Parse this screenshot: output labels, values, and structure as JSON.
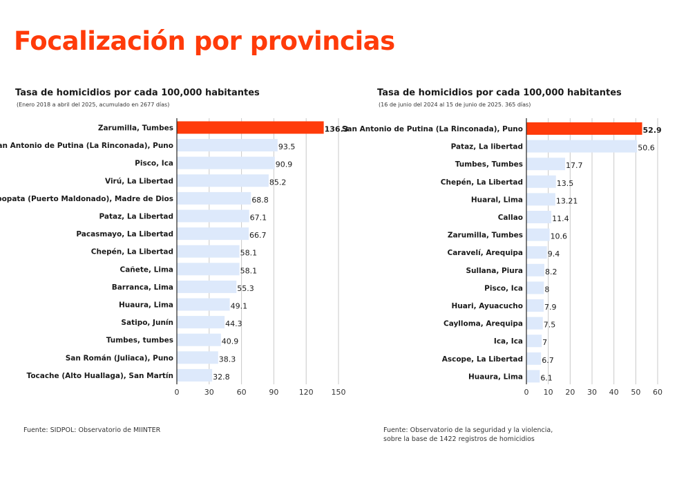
{
  "title": "Focalización por provincias",
  "colors": {
    "accent": "#ff3b0a",
    "bar": "#dde9fb",
    "grid": "#c8c8c8"
  },
  "source_left": "Fuente: SIDPOL: Observatorio de MIINTER",
  "source_right_line1": "Fuente: Observatorio de la seguridad y la violencia,",
  "source_right_line2": "sobre la base de 1422 registros de homicidios",
  "chart_data": [
    {
      "type": "bar",
      "orientation": "horizontal",
      "title": "Tasa de homicidios por cada 100,000 habitantes",
      "subtitle": "(Enero 2018 a abril del 2025, acumulado en 2677 días)",
      "categories": [
        "Zarumilla, Tumbes",
        "San Antonio de Putina  (La Rinconada), Puno",
        "Pisco, Ica",
        "Virú, La Libertad",
        "Tambopata (Puerto Maldonado), Madre de Dios",
        "Pataz, La Libertad",
        "Pacasmayo, La Libertad",
        "Chepén, La Libertad",
        "Cañete, Lima",
        "Barranca, Lima",
        "Huaura, Lima",
        "Satipo, Junín",
        "Tumbes, tumbes",
        "San Román (Juliaca), Puno",
        "Tocache (Alto Huallaga), San Martín"
      ],
      "values": [
        136.3,
        93.5,
        90.9,
        85.2,
        68.8,
        67.1,
        66.7,
        58.1,
        58.1,
        55.3,
        49.1,
        44.3,
        40.9,
        38.3,
        32.8
      ],
      "value_labels": [
        "136.3",
        "93.5",
        "90.9",
        "85.2",
        "68.8",
        "67.1",
        "66.7",
        "58.1",
        "58.1",
        "55.3",
        "49.1",
        "44.3",
        "40.9",
        "38.3",
        "32.8"
      ],
      "highlight_index": 0,
      "xlim": [
        0,
        150
      ],
      "xticks": [
        "0",
        "30",
        "60",
        "90",
        "120",
        "150"
      ],
      "grid": true
    },
    {
      "type": "bar",
      "orientation": "horizontal",
      "title": "Tasa de homicidios por cada 100,000 habitantes",
      "subtitle": "(16 de junio del 2024 al  15 de junio de 2025. 365 días)",
      "categories": [
        "San Antonio de Putina  (La Rinconada), Puno",
        "Pataz, La libertad",
        "Tumbes, Tumbes",
        "Chepén, La Libertad",
        "Huaral, Lima",
        "Callao",
        "Zarumilla, Tumbes",
        "Caravelí, Arequipa",
        "Sullana, Piura",
        "Pisco, Ica",
        "Huari, Ayuacucho",
        "Caylloma, Arequipa",
        "Ica, Ica",
        "Ascope, La Libertad",
        "Huaura, Lima"
      ],
      "values": [
        52.9,
        50.6,
        17.7,
        13.5,
        13.21,
        11.4,
        10.6,
        9.4,
        8.2,
        8,
        7.9,
        7.5,
        7,
        6.7,
        6.1
      ],
      "value_labels": [
        "52.9",
        "50.6",
        "17.7",
        "13.5",
        "13.21",
        "11.4",
        "10.6",
        "9.4",
        "8.2",
        "8",
        "7.9",
        "7.5",
        "7",
        "6.7",
        "6.1"
      ],
      "highlight_index": 0,
      "xlim": [
        0,
        60
      ],
      "xticks": [
        "0",
        "10",
        "20",
        "30",
        "40",
        "50",
        "60"
      ],
      "grid": true
    }
  ]
}
